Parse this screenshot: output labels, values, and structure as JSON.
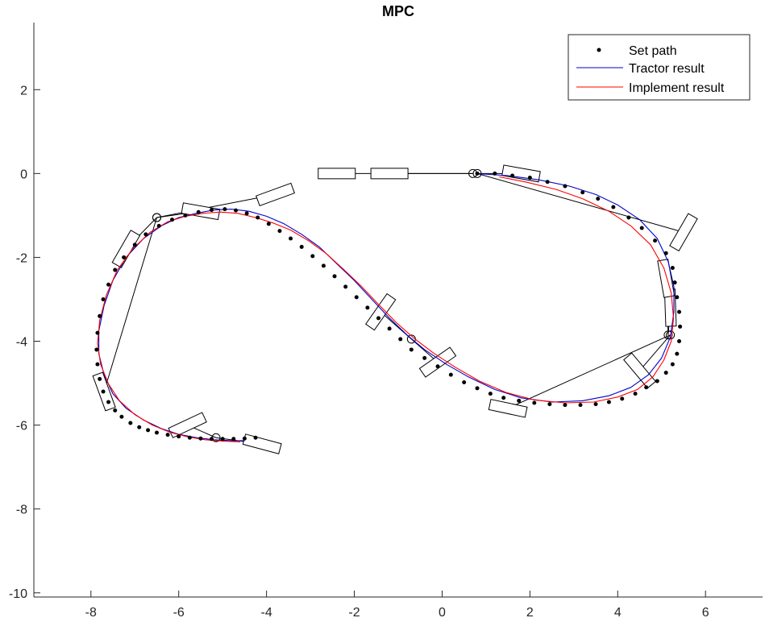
{
  "chart_data": {
    "type": "line",
    "title": "MPC",
    "xlabel": "",
    "ylabel": "",
    "xlim": [
      -9.3,
      7.3
    ],
    "ylim": [
      -10.1,
      3.6
    ],
    "xticks": [
      -8,
      -6,
      -4,
      -2,
      0,
      2,
      4,
      6
    ],
    "yticks": [
      2,
      0,
      -2,
      -4,
      -6,
      -8,
      -10
    ],
    "grid": false,
    "legend_position": "top-right",
    "legend": [
      "Set path",
      "Tractor result",
      "Implement result"
    ],
    "colors": {
      "set_path": "#000000",
      "tractor": "#0000cc",
      "implement": "#ff0000",
      "outline": "#000000"
    },
    "set_path": {
      "name": "Set path",
      "x": [
        0.8,
        1.2,
        1.6,
        2.0,
        2.4,
        2.8,
        3.2,
        3.55,
        3.9,
        4.25,
        4.55,
        4.85,
        5.1,
        5.25,
        5.3,
        5.35,
        5.4,
        5.42,
        5.4,
        5.35,
        5.25,
        5.1,
        4.9,
        4.65,
        4.4,
        4.1,
        3.8,
        3.5,
        3.15,
        2.8,
        2.45,
        2.1,
        1.75,
        1.4,
        1.1,
        0.8,
        0.5,
        0.2,
        -0.1,
        -0.4,
        -0.7,
        -0.95,
        -1.2,
        -1.45,
        -1.7,
        -1.95,
        -2.2,
        -2.45,
        -2.7,
        -2.95,
        -3.2,
        -3.45,
        -3.7,
        -3.95,
        -4.2,
        -4.45,
        -4.7,
        -4.95,
        -5.25,
        -5.55,
        -5.85,
        -6.15,
        -6.45,
        -6.75,
        -7.0,
        -7.25,
        -7.45,
        -7.6,
        -7.72,
        -7.8,
        -7.85,
        -7.87,
        -7.85,
        -7.8,
        -7.72,
        -7.6,
        -7.45,
        -7.3,
        -7.1,
        -6.9,
        -6.7,
        -6.5,
        -6.25,
        -6.0,
        -5.75,
        -5.5,
        -5.25,
        -5.0,
        -4.75,
        -4.5,
        -4.25
      ],
      "y": [
        0.0,
        0.0,
        -0.05,
        -0.1,
        -0.2,
        -0.3,
        -0.45,
        -0.6,
        -0.8,
        -1.05,
        -1.3,
        -1.6,
        -1.9,
        -2.25,
        -2.6,
        -2.95,
        -3.3,
        -3.65,
        -4.0,
        -4.3,
        -4.55,
        -4.75,
        -4.95,
        -5.1,
        -5.25,
        -5.37,
        -5.45,
        -5.5,
        -5.52,
        -5.52,
        -5.5,
        -5.47,
        -5.42,
        -5.35,
        -5.25,
        -5.12,
        -4.98,
        -4.8,
        -4.6,
        -4.4,
        -4.2,
        -3.95,
        -3.7,
        -3.45,
        -3.2,
        -2.95,
        -2.7,
        -2.45,
        -2.2,
        -1.97,
        -1.75,
        -1.55,
        -1.37,
        -1.2,
        -1.05,
        -0.95,
        -0.88,
        -0.85,
        -0.87,
        -0.92,
        -1.0,
        -1.1,
        -1.25,
        -1.45,
        -1.7,
        -2.0,
        -2.3,
        -2.65,
        -3.0,
        -3.4,
        -3.8,
        -4.2,
        -4.55,
        -4.9,
        -5.2,
        -5.45,
        -5.65,
        -5.8,
        -5.95,
        -6.05,
        -6.12,
        -6.18,
        -6.23,
        -6.27,
        -6.3,
        -6.32,
        -6.33,
        -6.33,
        -6.33,
        -6.32,
        -6.3
      ]
    },
    "tractor": {
      "name": "Tractor result",
      "x": [
        0.8,
        1.5,
        2.2,
        2.9,
        3.5,
        4.0,
        4.5,
        4.9,
        5.15,
        5.28,
        5.28,
        5.2,
        5.0,
        4.7,
        4.3,
        3.8,
        3.2,
        2.5,
        1.8,
        1.2,
        0.6,
        0.1,
        -0.4,
        -0.8,
        -1.2,
        -1.6,
        -2.0,
        -2.4,
        -2.8,
        -3.2,
        -3.6,
        -4.0,
        -4.4,
        -4.8,
        -5.2,
        -5.6,
        -6.0,
        -6.4,
        -6.8,
        -7.2,
        -7.5,
        -7.7,
        -7.82,
        -7.82,
        -7.7,
        -7.5,
        -7.2,
        -6.8,
        -6.4,
        -6.0,
        -5.6,
        -5.2,
        -4.8,
        -4.5
      ],
      "y": [
        0.0,
        -0.05,
        -0.15,
        -0.3,
        -0.5,
        -0.75,
        -1.1,
        -1.55,
        -2.1,
        -2.7,
        -3.3,
        -3.9,
        -4.4,
        -4.8,
        -5.1,
        -5.3,
        -5.42,
        -5.45,
        -5.35,
        -5.15,
        -4.85,
        -4.55,
        -4.2,
        -3.85,
        -3.45,
        -3.0,
        -2.55,
        -2.15,
        -1.75,
        -1.45,
        -1.2,
        -1.02,
        -0.9,
        -0.85,
        -0.87,
        -0.95,
        -1.05,
        -1.25,
        -1.55,
        -2.0,
        -2.55,
        -3.15,
        -3.75,
        -4.3,
        -4.8,
        -5.25,
        -5.6,
        -5.88,
        -6.08,
        -6.22,
        -6.3,
        -6.35,
        -6.37,
        -6.37
      ]
    },
    "implement": {
      "name": "Implement result",
      "x": [
        1.3,
        1.9,
        2.6,
        3.2,
        3.8,
        4.3,
        4.75,
        5.05,
        5.22,
        5.27,
        5.22,
        5.05,
        4.8,
        4.45,
        4.0,
        3.45,
        2.8,
        2.1,
        1.45,
        0.85,
        0.3,
        -0.2,
        -0.65,
        -1.05,
        -1.45,
        -1.85,
        -2.25,
        -2.65,
        -3.05,
        -3.45,
        -3.85,
        -4.25,
        -4.65,
        -5.05,
        -5.45,
        -5.85,
        -6.25,
        -6.65,
        -7.05,
        -7.4,
        -7.65,
        -7.8,
        -7.85,
        -7.78,
        -7.6,
        -7.35,
        -7.0,
        -6.6,
        -6.2,
        -5.8,
        -5.4,
        -5.0,
        -4.6
      ],
      "y": [
        -0.08,
        -0.2,
        -0.38,
        -0.6,
        -0.9,
        -1.25,
        -1.7,
        -2.25,
        -2.85,
        -3.45,
        -4.0,
        -4.45,
        -4.85,
        -5.15,
        -5.33,
        -5.45,
        -5.47,
        -5.4,
        -5.22,
        -4.95,
        -4.62,
        -4.28,
        -3.92,
        -3.55,
        -3.12,
        -2.68,
        -2.28,
        -1.9,
        -1.6,
        -1.35,
        -1.18,
        -1.05,
        -0.95,
        -0.92,
        -0.95,
        -1.02,
        -1.15,
        -1.4,
        -1.8,
        -2.3,
        -2.9,
        -3.5,
        -4.05,
        -4.55,
        -5.02,
        -5.42,
        -5.75,
        -6.0,
        -6.17,
        -6.28,
        -6.35,
        -6.38,
        -6.4
      ]
    },
    "vehicle_poses": [
      {
        "tractor": [
          -1.2,
          0.0,
          0
        ],
        "implement": [
          -2.4,
          0.0,
          0
        ],
        "hitch": [
          0.7,
          0.0
        ]
      },
      {
        "tractor": [
          1.8,
          0.0,
          -10
        ],
        "implement": [
          5.5,
          -1.4,
          60
        ],
        "hitch": [
          0.8,
          0.0
        ]
      },
      {
        "tractor": [
          5.2,
          -3.2,
          92
        ],
        "implement": [
          5.1,
          -2.5,
          100
        ],
        "hitch": [
          5.15,
          -3.85
        ]
      },
      {
        "tractor": [
          4.5,
          -4.7,
          130
        ],
        "implement": [
          1.5,
          -5.6,
          168
        ],
        "hitch": [
          5.2,
          -3.85
        ]
      },
      {
        "tractor": [
          -0.1,
          -4.5,
          35
        ],
        "implement": [
          -1.4,
          -3.3,
          55
        ],
        "hitch": [
          -0.7,
          -3.95
        ]
      },
      {
        "tractor": [
          -5.5,
          -0.9,
          170
        ],
        "implement": [
          -3.8,
          -0.5,
          20
        ],
        "hitch": [
          -6.5,
          -1.05
        ]
      },
      {
        "tractor": [
          -7.2,
          -1.8,
          60
        ],
        "implement": [
          -7.7,
          -5.2,
          110
        ],
        "hitch": [
          -6.5,
          -1.05
        ]
      },
      {
        "tractor": [
          -5.8,
          -6.0,
          25
        ],
        "implement": [
          -4.1,
          -6.45,
          165
        ],
        "hitch": [
          -5.15,
          -6.3
        ]
      }
    ]
  }
}
